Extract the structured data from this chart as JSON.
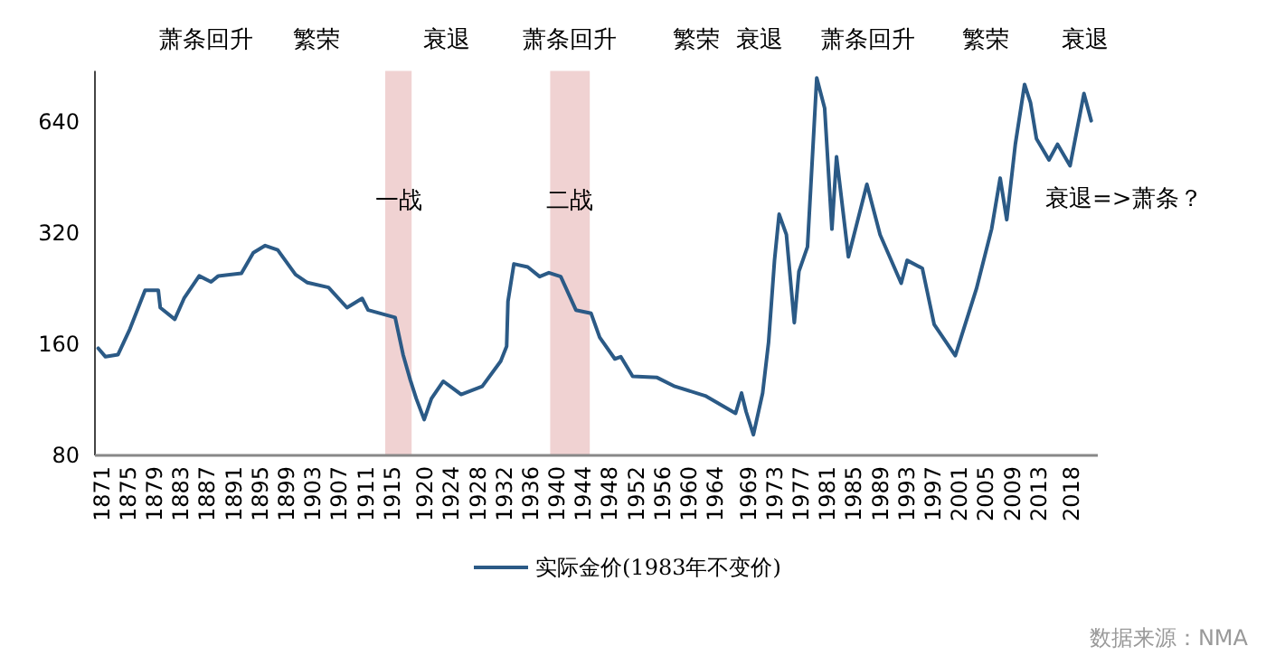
{
  "chart_data": {
    "type": "line",
    "log": "y",
    "legend": "bottom",
    "grid": false,
    "xlim": [
      1870,
      2022
    ],
    "xticks": [
      1871,
      1875,
      1879,
      1883,
      1887,
      1891,
      1895,
      1899,
      1903,
      1907,
      1911,
      1915,
      1920,
      1924,
      1928,
      1932,
      1936,
      1940,
      1944,
      1948,
      1952,
      1956,
      1960,
      1964,
      1969,
      1973,
      1977,
      1981,
      1985,
      1989,
      1993,
      1997,
      2001,
      2005,
      2009,
      2013,
      2018
    ],
    "ylim": [
      80,
      880
    ],
    "yticks": [
      80,
      160,
      320,
      640
    ],
    "series": [
      {
        "name": "实际金价(1983年不变价)",
        "color": "#2b5a86",
        "x": [
          1870.5,
          1871.6,
          1873.5,
          1875.3,
          1877.6,
          1879.6,
          1879.9,
          1882.1,
          1883.5,
          1885.8,
          1887.6,
          1888.7,
          1892.2,
          1894,
          1895.8,
          1897.7,
          1900.4,
          1902.2,
          1905.4,
          1908.2,
          1910.5,
          1911.4,
          1915.5,
          1916.7,
          1917.8,
          1918.7,
          1919.9,
          1921,
          1922.8,
          1925.5,
          1928.7,
          1931.5,
          1932.4,
          1932.6,
          1933.5,
          1935.6,
          1937.4,
          1938.8,
          1940.6,
          1942.9,
          1945.2,
          1946.5,
          1948.8,
          1949.7,
          1951.5,
          1955.2,
          1957.9,
          1962.5,
          1967.1,
          1968,
          1968.7,
          1969.8,
          1971.2,
          1972.1,
          1973,
          1973.7,
          1974.8,
          1976,
          1976.7,
          1978,
          1979.4,
          1980.6,
          1981.7,
          1982.4,
          1984.2,
          1987,
          1989,
          1992.2,
          1993.1,
          1995.4,
          1997.2,
          2000.4,
          2003.6,
          2005.9,
          2007.2,
          2008.2,
          2009.5,
          2010.9,
          2011.8,
          2012.7,
          2014.6,
          2015.9,
          2017.8,
          2019.9,
          2021
        ],
        "values": [
          156,
          148,
          150,
          176,
          224,
          224,
          201,
          187,
          213,
          245,
          236,
          245,
          249,
          283,
          296,
          288,
          247,
          235,
          228,
          201,
          213,
          198,
          189,
          150,
          128,
          114,
          100,
          114,
          127,
          117,
          123,
          144,
          158,
          209,
          264,
          259,
          244,
          250,
          244,
          198,
          194,
          167,
          146,
          148,
          131,
          130,
          123,
          116,
          104,
          118,
          105,
          91,
          118,
          162,
          270,
          360,
          317,
          183,
          252,
          294,
          842,
          697,
          328,
          515,
          276,
          434,
          317,
          234,
          270,
          257,
          181,
          149,
          226,
          328,
          451,
          348,
          557,
          809,
          722,
          577,
          505,
          557,
          487,
          764,
          645
        ]
      }
    ],
    "bands": [
      {
        "axis": "x",
        "from": 1914,
        "to": 1918,
        "label": "一战",
        "color": "#f0d2d2"
      },
      {
        "axis": "x",
        "from": 1939,
        "to": 1945,
        "label": "二战",
        "color": "#f0d2d2"
      }
    ],
    "annotations": [
      "萧条回升",
      "繁荣",
      "衰退",
      "萧条回升",
      "繁荣",
      "衰退",
      "萧条回升",
      "繁荣",
      "衰退",
      "衰退=>萧条？",
      "数据来源：NMA"
    ]
  }
}
